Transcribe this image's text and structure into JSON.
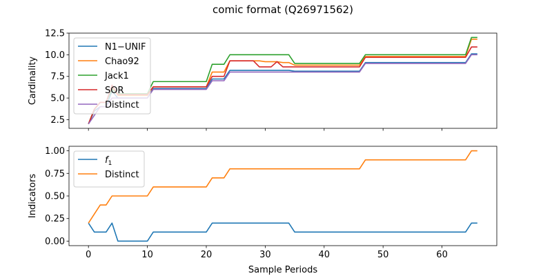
{
  "figure": {
    "title": "comic format (Q26971562)"
  },
  "chart_data": [
    {
      "type": "line",
      "ylabel": "Cardinality",
      "xlabel": "",
      "xlim": [
        -3.3,
        69.3
      ],
      "ylim": [
        1.5,
        12.5
      ],
      "xticks": [
        0,
        10,
        20,
        30,
        40,
        50,
        60
      ],
      "yticks": [
        2.5,
        5.0,
        7.5,
        10.0,
        12.5
      ],
      "ytick_labels": [
        "2.5",
        "5.0",
        "7.5",
        "10.0",
        "12.5"
      ],
      "show_xtick_labels": false,
      "grid": false,
      "legend_position": "upper-left",
      "x": [
        0,
        1,
        2,
        3,
        4,
        5,
        6,
        7,
        8,
        9,
        10,
        11,
        12,
        13,
        14,
        15,
        16,
        17,
        18,
        19,
        20,
        21,
        22,
        23,
        24,
        25,
        26,
        27,
        28,
        29,
        30,
        31,
        32,
        33,
        34,
        35,
        36,
        37,
        38,
        39,
        40,
        41,
        42,
        43,
        44,
        45,
        46,
        47,
        48,
        49,
        50,
        51,
        52,
        53,
        54,
        55,
        56,
        57,
        58,
        59,
        60,
        61,
        62,
        63,
        64,
        65,
        66
      ],
      "series": [
        {
          "name": "N1−UNIF",
          "color": "#1f77b4",
          "values": [
            2,
            3.5,
            4,
            4,
            5.8,
            5,
            5,
            5,
            5,
            5,
            5,
            6.1,
            6.1,
            6.1,
            6.1,
            6.1,
            6.1,
            6.1,
            6.1,
            6.1,
            6.1,
            7.2,
            7.2,
            7.2,
            8.2,
            8.2,
            8.2,
            8.2,
            8.2,
            8.2,
            8.2,
            8.2,
            8.2,
            8.2,
            8.2,
            8.1,
            8.1,
            8.1,
            8.1,
            8.1,
            8.1,
            8.1,
            8.1,
            8.1,
            8.1,
            8.1,
            8.1,
            9.1,
            9.1,
            9.1,
            9.1,
            9.1,
            9.1,
            9.1,
            9.1,
            9.1,
            9.1,
            9.1,
            9.1,
            9.1,
            9.1,
            9.1,
            9.1,
            9.1,
            9.1,
            10.1,
            10.1
          ]
        },
        {
          "name": "Chao92",
          "color": "#ff7f0e",
          "values": [
            2,
            3.7,
            4.5,
            4.5,
            6.3,
            5.3,
            5.3,
            5.3,
            5.3,
            5.3,
            5.3,
            6.3,
            6.3,
            6.3,
            6.3,
            6.3,
            6.3,
            6.3,
            6.3,
            6.3,
            6.3,
            8,
            8,
            8,
            9.3,
            9.3,
            9.3,
            9.3,
            9.3,
            9.3,
            9.2,
            9.2,
            9.2,
            9.1,
            9.1,
            8.8,
            8.8,
            8.8,
            8.8,
            8.8,
            8.8,
            8.8,
            8.8,
            8.8,
            8.8,
            8.8,
            8.8,
            9.8,
            9.8,
            9.8,
            9.8,
            9.8,
            9.8,
            9.8,
            9.8,
            9.8,
            9.8,
            9.8,
            9.8,
            9.8,
            9.8,
            9.8,
            9.8,
            9.8,
            9.8,
            11.8,
            11.8
          ]
        },
        {
          "name": "Jack1",
          "color": "#2ca02c",
          "values": [
            2,
            3.7,
            4.5,
            4.5,
            6,
            5.5,
            5.5,
            5.5,
            5.5,
            5.5,
            5.5,
            6.9,
            6.9,
            6.9,
            6.9,
            6.9,
            6.9,
            6.9,
            6.9,
            6.9,
            6.9,
            8.9,
            8.9,
            8.9,
            10,
            10,
            10,
            10,
            10,
            10,
            10,
            10,
            10,
            10,
            10,
            9,
            9,
            9,
            9,
            9,
            9,
            9,
            9,
            9,
            9,
            9,
            9,
            10,
            10,
            10,
            10,
            10,
            10,
            10,
            10,
            10,
            10,
            10,
            10,
            10,
            10,
            10,
            10,
            10,
            10,
            12,
            12
          ]
        },
        {
          "name": "SOR",
          "color": "#d62728",
          "values": [
            2,
            3.7,
            4.5,
            4.5,
            6.5,
            5.4,
            5.4,
            5.4,
            5.4,
            5.4,
            5.4,
            6.3,
            6.3,
            6.3,
            6.3,
            6.3,
            6.3,
            6.3,
            6.3,
            6.3,
            6.3,
            7.5,
            7.5,
            7.5,
            9.3,
            9.3,
            9.3,
            9.3,
            9.3,
            8.6,
            8.6,
            8.6,
            9.2,
            8.6,
            8.6,
            8.6,
            8.6,
            8.6,
            8.6,
            8.6,
            8.6,
            8.6,
            8.6,
            8.6,
            8.6,
            8.6,
            8.6,
            9.7,
            9.7,
            9.7,
            9.7,
            9.7,
            9.7,
            9.7,
            9.7,
            9.7,
            9.7,
            9.7,
            9.7,
            9.7,
            9.7,
            9.7,
            9.7,
            9.7,
            9.7,
            10.9,
            10.9
          ]
        },
        {
          "name": "Distinct",
          "color": "#9467bd",
          "values": [
            2,
            3,
            4,
            4,
            5,
            5,
            5,
            5,
            5,
            5,
            5,
            6,
            6,
            6,
            6,
            6,
            6,
            6,
            6,
            6,
            6,
            7,
            7,
            7,
            8,
            8,
            8,
            8,
            8,
            8,
            8,
            8,
            8,
            8,
            8,
            8,
            8,
            8,
            8,
            8,
            8,
            8,
            8,
            8,
            8,
            8,
            8,
            9,
            9,
            9,
            9,
            9,
            9,
            9,
            9,
            9,
            9,
            9,
            9,
            9,
            9,
            9,
            9,
            9,
            9,
            10,
            10
          ]
        }
      ]
    },
    {
      "type": "line",
      "ylabel": "Indicators",
      "xlabel": "Sample Periods",
      "xlim": [
        -3.3,
        69.3
      ],
      "ylim": [
        -0.05,
        1.05
      ],
      "xticks": [
        0,
        10,
        20,
        30,
        40,
        50,
        60
      ],
      "xtick_labels": [
        "0",
        "10",
        "20",
        "30",
        "40",
        "50",
        "60"
      ],
      "yticks": [
        0.0,
        0.25,
        0.5,
        0.75,
        1.0
      ],
      "ytick_labels": [
        "0.00",
        "0.25",
        "0.50",
        "0.75",
        "1.00"
      ],
      "show_xtick_labels": true,
      "grid": false,
      "legend_position": "upper-left",
      "x": [
        0,
        1,
        2,
        3,
        4,
        5,
        6,
        7,
        8,
        9,
        10,
        11,
        12,
        13,
        14,
        15,
        16,
        17,
        18,
        19,
        20,
        21,
        22,
        23,
        24,
        25,
        26,
        27,
        28,
        29,
        30,
        31,
        32,
        33,
        34,
        35,
        36,
        37,
        38,
        39,
        40,
        41,
        42,
        43,
        44,
        45,
        46,
        47,
        48,
        49,
        50,
        51,
        52,
        53,
        54,
        55,
        56,
        57,
        58,
        59,
        60,
        61,
        62,
        63,
        64,
        65,
        66
      ],
      "series": [
        {
          "name": "f",
          "name_sub": "1",
          "color": "#1f77b4",
          "values": [
            0.2,
            0.1,
            0.1,
            0.1,
            0.2,
            0,
            0,
            0,
            0,
            0,
            0,
            0.1,
            0.1,
            0.1,
            0.1,
            0.1,
            0.1,
            0.1,
            0.1,
            0.1,
            0.1,
            0.2,
            0.2,
            0.2,
            0.2,
            0.2,
            0.2,
            0.2,
            0.2,
            0.2,
            0.2,
            0.2,
            0.2,
            0.2,
            0.2,
            0.1,
            0.1,
            0.1,
            0.1,
            0.1,
            0.1,
            0.1,
            0.1,
            0.1,
            0.1,
            0.1,
            0.1,
            0.1,
            0.1,
            0.1,
            0.1,
            0.1,
            0.1,
            0.1,
            0.1,
            0.1,
            0.1,
            0.1,
            0.1,
            0.1,
            0.1,
            0.1,
            0.1,
            0.1,
            0.1,
            0.2,
            0.2
          ]
        },
        {
          "name": "Distinct",
          "color": "#ff7f0e",
          "values": [
            0.2,
            0.3,
            0.4,
            0.4,
            0.5,
            0.5,
            0.5,
            0.5,
            0.5,
            0.5,
            0.5,
            0.6,
            0.6,
            0.6,
            0.6,
            0.6,
            0.6,
            0.6,
            0.6,
            0.6,
            0.6,
            0.7,
            0.7,
            0.7,
            0.8,
            0.8,
            0.8,
            0.8,
            0.8,
            0.8,
            0.8,
            0.8,
            0.8,
            0.8,
            0.8,
            0.8,
            0.8,
            0.8,
            0.8,
            0.8,
            0.8,
            0.8,
            0.8,
            0.8,
            0.8,
            0.8,
            0.8,
            0.9,
            0.9,
            0.9,
            0.9,
            0.9,
            0.9,
            0.9,
            0.9,
            0.9,
            0.9,
            0.9,
            0.9,
            0.9,
            0.9,
            0.9,
            0.9,
            0.9,
            0.9,
            1.0,
            1.0
          ]
        }
      ]
    }
  ]
}
